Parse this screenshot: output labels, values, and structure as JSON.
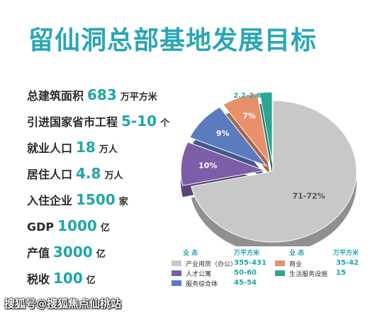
{
  "title": "留仙洞总部基地发展目标",
  "stats": [
    {
      "label": "总建筑面积",
      "value": "683",
      "unit": "万平方米"
    },
    {
      "label": "引进国家省市工程",
      "value": "5-10",
      "unit": "个"
    },
    {
      "label": "就业人口",
      "value": "18",
      "unit": "万人"
    },
    {
      "label": "居住人口",
      "value": "4.8",
      "unit": "万人"
    },
    {
      "label": "入住企业",
      "value": "1500",
      "unit": "家"
    },
    {
      "label": "GDP",
      "value": "1000",
      "unit": "亿"
    },
    {
      "label": "产值",
      "value": "3000",
      "unit": "亿"
    },
    {
      "label": "税收",
      "value": "100",
      "unit": "亿"
    }
  ],
  "chart_data": {
    "type": "pie",
    "slices": [
      {
        "label": "71-72%",
        "value": 71.5,
        "color": "#c8c8c8",
        "name": "产业用房（办公）",
        "range": "355-431"
      },
      {
        "label": "10%",
        "value": 10,
        "color": "#7b5ea7",
        "name": "人才公寓",
        "range": "50-60"
      },
      {
        "label": "9%",
        "value": 9,
        "color": "#5b7bbf",
        "name": "服务综合体",
        "range": "45-54"
      },
      {
        "label": "7%",
        "value": 7,
        "color": "#e8906a",
        "name": "商业",
        "range": "35-42"
      },
      {
        "label": "2.2-2.6%",
        "value": 2.4,
        "color": "#2aa690",
        "name": "生活服务设施",
        "range": "15"
      }
    ]
  },
  "legend": {
    "header_type": "业 态",
    "header_unit": "万平方米"
  },
  "watermark": "搜狐号@搜狐焦点仙桃站"
}
